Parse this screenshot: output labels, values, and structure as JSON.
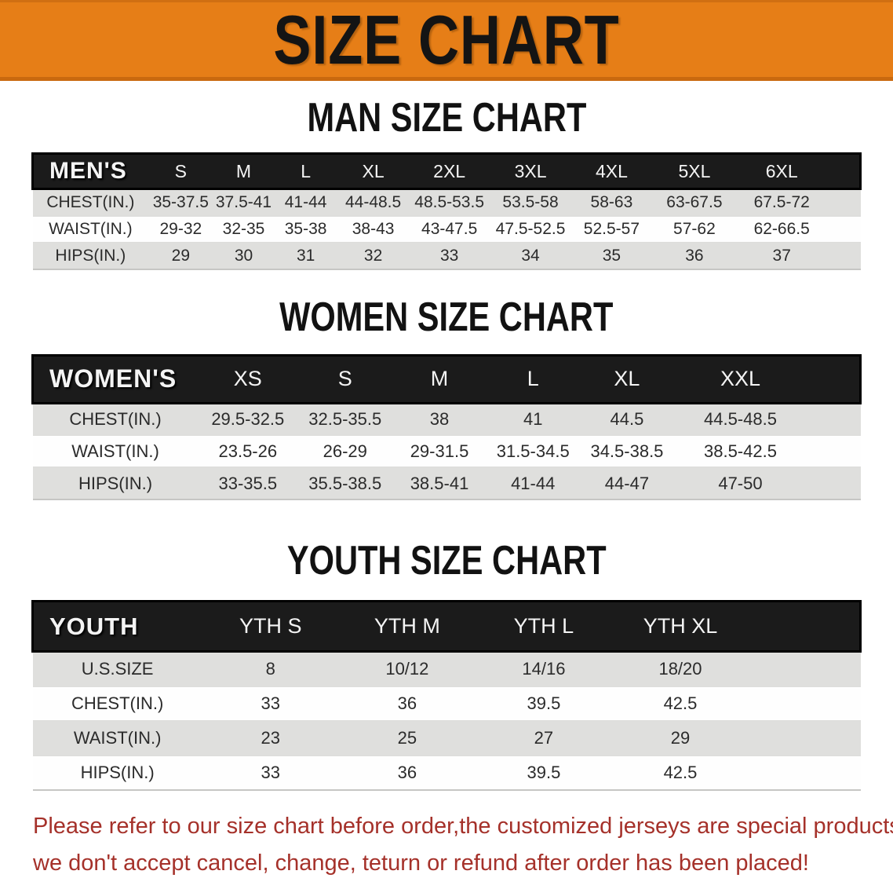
{
  "banner": {
    "title": "SIZE CHART",
    "bg_color": "#E67E17",
    "text_color": "#141414"
  },
  "sections": [
    {
      "heading": "MAN SIZE CHART",
      "table": {
        "label": "MEN'S",
        "columns": [
          "S",
          "M",
          "L",
          "XL",
          "2XL",
          "3XL",
          "4XL",
          "5XL",
          "6XL"
        ],
        "rows": [
          {
            "label": "CHEST(IN.)",
            "values": [
              "35-37.5",
              "37.5-41",
              "41-44",
              "44-48.5",
              "48.5-53.5",
              "53.5-58",
              "58-63",
              "63-67.5",
              "67.5-72"
            ]
          },
          {
            "label": "WAIST(IN.)",
            "values": [
              "29-32",
              "32-35",
              "35-38",
              "38-43",
              "43-47.5",
              "47.5-52.5",
              "52.5-57",
              "57-62",
              "62-66.5"
            ]
          },
          {
            "label": "HIPS(IN.)",
            "values": [
              "29",
              "30",
              "31",
              "32",
              "33",
              "34",
              "35",
              "36",
              "37"
            ]
          }
        ]
      }
    },
    {
      "heading": "WOMEN SIZE CHART",
      "table": {
        "label": "WOMEN'S",
        "columns": [
          "XS",
          "S",
          "M",
          "L",
          "XL",
          "XXL"
        ],
        "rows": [
          {
            "label": "CHEST(IN.)",
            "values": [
              "29.5-32.5",
              "32.5-35.5",
              "38",
              "41",
              "44.5",
              "44.5-48.5"
            ]
          },
          {
            "label": "WAIST(IN.)",
            "values": [
              "23.5-26",
              "26-29",
              "29-31.5",
              "31.5-34.5",
              "34.5-38.5",
              "38.5-42.5"
            ]
          },
          {
            "label": "HIPS(IN.)",
            "values": [
              "33-35.5",
              "35.5-38.5",
              "38.5-41",
              "41-44",
              "44-47",
              "47-50"
            ]
          }
        ]
      }
    },
    {
      "heading": "YOUTH SIZE CHART",
      "table": {
        "label": "YOUTH",
        "columns": [
          "YTH S",
          "YTH M",
          "YTH L",
          "YTH XL"
        ],
        "rows": [
          {
            "label": "U.S.SIZE",
            "values": [
              "8",
              "10/12",
              "14/16",
              "18/20"
            ]
          },
          {
            "label": "CHEST(IN.)",
            "values": [
              "33",
              "36",
              "39.5",
              "42.5"
            ]
          },
          {
            "label": "WAIST(IN.)",
            "values": [
              "23",
              "25",
              "27",
              "29"
            ]
          },
          {
            "label": "HIPS(IN.)",
            "values": [
              "33",
              "36",
              "39.5",
              "42.5"
            ]
          }
        ]
      }
    }
  ],
  "disclaimer": {
    "lines": [
      "Please refer to our size chart before order,the customized jerseys are special products,",
      "we don't accept cancel, change, teturn or refund after order has been placed!"
    ],
    "color": "#A5312A"
  },
  "colors": {
    "header_bar_bg": "#1B1B1B",
    "row_gray": "#DFDFDD",
    "row_white": "#FEFEFE"
  }
}
